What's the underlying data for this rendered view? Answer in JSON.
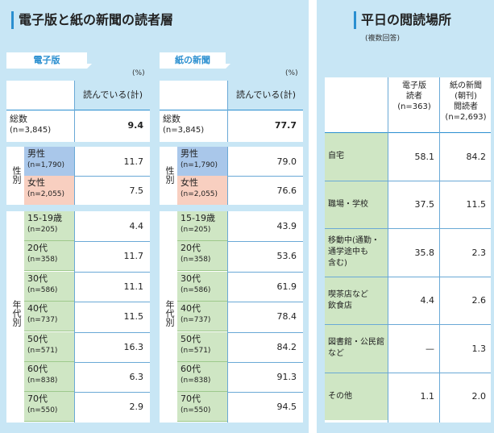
{
  "left": {
    "title": "電子版と紙の新聞の読者層",
    "unit": "(%)",
    "column_header": "読んでいる(計)",
    "tables": [
      {
        "tab_label": "電子版",
        "total": "9.4",
        "gender": [
          "11.7",
          "7.5"
        ],
        "age": [
          "4.4",
          "11.7",
          "11.1",
          "11.5",
          "16.3",
          "6.3",
          "2.9"
        ]
      },
      {
        "tab_label": "紙の新聞",
        "total": "77.7",
        "gender": [
          "79.0",
          "76.6"
        ],
        "age": [
          "43.9",
          "53.6",
          "61.9",
          "78.4",
          "84.2",
          "91.3",
          "94.5"
        ]
      }
    ],
    "total_label": "総数",
    "total_n": "(n=3,845)",
    "gender_group": "性別",
    "gender_rows": [
      {
        "label": "男性",
        "n": "(n=1,790)"
      },
      {
        "label": "女性",
        "n": "(n=2,055)"
      }
    ],
    "age_group": "年代別",
    "age_rows": [
      {
        "label": "15-19歳",
        "n": "(n=205)"
      },
      {
        "label": "20代",
        "n": "(n=358)"
      },
      {
        "label": "30代",
        "n": "(n=586)"
      },
      {
        "label": "40代",
        "n": "(n=737)"
      },
      {
        "label": "50代",
        "n": "(n=571)"
      },
      {
        "label": "60代",
        "n": "(n=838)"
      },
      {
        "label": "70代",
        "n": "(n=550)"
      }
    ]
  },
  "right": {
    "title": "平日の閲読場所",
    "subtitle": "(複数回答)",
    "col1_lines": [
      "電子版",
      "読者",
      "(n=363)"
    ],
    "col2_lines": [
      "紙の新聞",
      "(朝刊)",
      "閲読者",
      "(n=2,693)"
    ],
    "rows": [
      {
        "label_lines": [
          "自宅"
        ],
        "v1": "58.1",
        "v2": "84.2"
      },
      {
        "label_lines": [
          "職場・学校"
        ],
        "v1": "37.5",
        "v2": "11.5"
      },
      {
        "label_lines": [
          "移動中(通勤・",
          "通学途中も",
          "含む)"
        ],
        "v1": "35.8",
        "v2": "2.3"
      },
      {
        "label_lines": [
          "喫茶店など",
          "飲食店"
        ],
        "v1": "4.4",
        "v2": "2.6"
      },
      {
        "label_lines": [
          "図書館・公民館",
          "など"
        ],
        "v1": "—",
        "v2": "1.3"
      },
      {
        "label_lines": [
          "その他"
        ],
        "v1": "1.1",
        "v2": "2.0"
      }
    ]
  },
  "colors": {
    "panel_bg": "#c8e6f5",
    "accent": "#2a8fd0",
    "male_bg": "#a9c7ea",
    "female_bg": "#f8cfc0",
    "age_bg": "#cfe6c4",
    "place_bg": "#cfe6c4"
  }
}
